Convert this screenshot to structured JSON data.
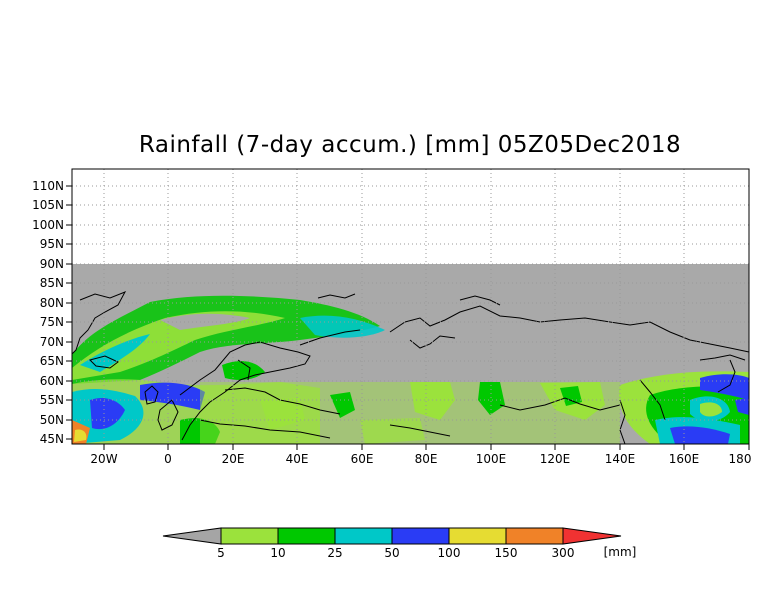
{
  "title": "Rainfall (7-day accum.) [mm] 05Z05Dec2018",
  "map": {
    "lon_range": [
      -30,
      180
    ],
    "lat_range": [
      45,
      112
    ],
    "data_lat_range": [
      45,
      90
    ],
    "grid": true,
    "lat_ticks": [
      "45N",
      "50N",
      "55N",
      "60N",
      "65N",
      "70N",
      "75N",
      "80N",
      "85N",
      "90N",
      "95N",
      "100N",
      "105N",
      "110N"
    ],
    "lon_ticks": [
      "20W",
      "0",
      "20E",
      "40E",
      "60E",
      "80E",
      "100E",
      "120E",
      "140E",
      "160E",
      "180"
    ],
    "missing_color": "#a9a9a9",
    "coastline_color": "#000000"
  },
  "legend": {
    "unit": "[mm]",
    "levels": [
      "5",
      "10",
      "25",
      "50",
      "100",
      "150",
      "300"
    ],
    "colors": [
      "#a5a5a5",
      "#9be23c",
      "#00c800",
      "#00c8c8",
      "#2a3cf5",
      "#e6dc32",
      "#f08228",
      "#f03232"
    ]
  }
}
